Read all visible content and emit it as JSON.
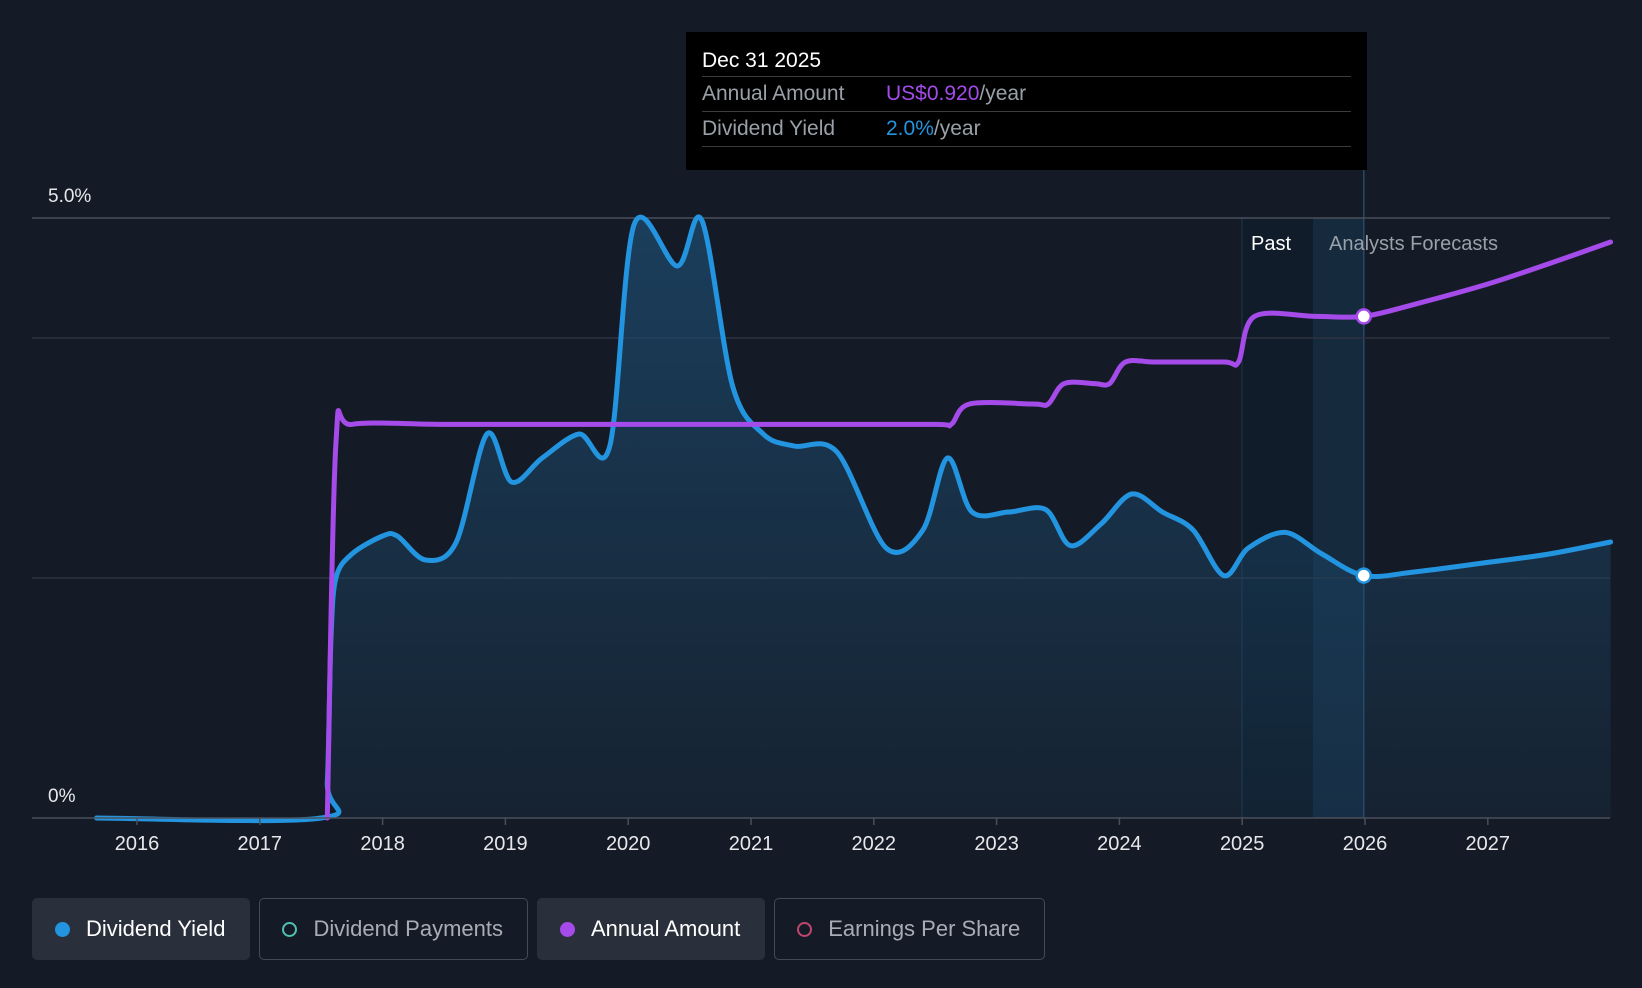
{
  "chart_data": {
    "type": "line",
    "x_ticks": [
      "2016",
      "2017",
      "2018",
      "2019",
      "2020",
      "2021",
      "2022",
      "2023",
      "2024",
      "2025",
      "2026",
      "2027"
    ],
    "x_range": [
      2015.5,
      2028.0
    ],
    "y_range": [
      0,
      5.0
    ],
    "y_tick_labels": {
      "top": "5.0%",
      "bottom": "0%"
    },
    "grid_values": [
      0,
      2.0,
      4.0,
      5.0
    ],
    "past_label": "Past",
    "forecast_label": "Analysts Forecasts",
    "forecast_start": 2025.99,
    "series": [
      {
        "name": "Dividend Yield",
        "color": "#2394df",
        "area": true,
        "points": [
          [
            2015.67,
            0.0
          ],
          [
            2017.5,
            0.0
          ],
          [
            2017.55,
            0.3
          ],
          [
            2017.58,
            1.5
          ],
          [
            2017.62,
            2.0
          ],
          [
            2017.75,
            2.2
          ],
          [
            2018.0,
            2.35
          ],
          [
            2018.12,
            2.35
          ],
          [
            2018.35,
            2.15
          ],
          [
            2018.6,
            2.3
          ],
          [
            2018.85,
            3.2
          ],
          [
            2019.05,
            2.8
          ],
          [
            2019.3,
            3.0
          ],
          [
            2019.6,
            3.2
          ],
          [
            2019.85,
            3.1
          ],
          [
            2020.05,
            4.95
          ],
          [
            2020.4,
            4.6
          ],
          [
            2020.6,
            4.98
          ],
          [
            2020.85,
            3.6
          ],
          [
            2021.1,
            3.2
          ],
          [
            2021.35,
            3.1
          ],
          [
            2021.7,
            3.05
          ],
          [
            2022.1,
            2.25
          ],
          [
            2022.4,
            2.4
          ],
          [
            2022.6,
            3.0
          ],
          [
            2022.8,
            2.55
          ],
          [
            2023.1,
            2.55
          ],
          [
            2023.4,
            2.57
          ],
          [
            2023.6,
            2.27
          ],
          [
            2023.85,
            2.45
          ],
          [
            2024.1,
            2.7
          ],
          [
            2024.35,
            2.55
          ],
          [
            2024.6,
            2.4
          ],
          [
            2024.85,
            2.02
          ],
          [
            2025.05,
            2.25
          ],
          [
            2025.35,
            2.38
          ],
          [
            2025.65,
            2.2
          ],
          [
            2025.99,
            2.02
          ],
          [
            2026.4,
            2.05
          ],
          [
            2027.0,
            2.13
          ],
          [
            2027.5,
            2.2
          ],
          [
            2028.0,
            2.3
          ]
        ]
      },
      {
        "name": "Annual Amount",
        "color": "#a44bea",
        "area": false,
        "points": [
          [
            2017.55,
            0.0
          ],
          [
            2017.62,
            3.12
          ],
          [
            2017.75,
            3.28
          ],
          [
            2018.5,
            3.28
          ],
          [
            2019.5,
            3.28
          ],
          [
            2020.5,
            3.28
          ],
          [
            2021.5,
            3.28
          ],
          [
            2022.5,
            3.28
          ],
          [
            2022.63,
            3.28
          ],
          [
            2022.78,
            3.45
          ],
          [
            2023.3,
            3.45
          ],
          [
            2023.42,
            3.45
          ],
          [
            2023.55,
            3.62
          ],
          [
            2023.8,
            3.62
          ],
          [
            2023.92,
            3.62
          ],
          [
            2024.05,
            3.8
          ],
          [
            2024.3,
            3.8
          ],
          [
            2024.85,
            3.8
          ],
          [
            2024.97,
            3.8
          ],
          [
            2025.1,
            4.18
          ],
          [
            2025.6,
            4.18
          ],
          [
            2025.99,
            4.18
          ],
          [
            2026.4,
            4.28
          ],
          [
            2027.0,
            4.45
          ],
          [
            2027.5,
            4.62
          ],
          [
            2028.0,
            4.8
          ]
        ]
      }
    ],
    "markers": [
      {
        "series": "Dividend Yield",
        "x": 2025.99,
        "y": 2.02
      },
      {
        "series": "Annual Amount",
        "x": 2025.99,
        "y": 4.18
      }
    ]
  },
  "tooltip": {
    "date": "Dec 31 2025",
    "rows": [
      {
        "label": "Annual Amount",
        "value": "US$0.920",
        "unit": "/year",
        "color": "#a44bea"
      },
      {
        "label": "Dividend Yield",
        "value": "2.0%",
        "unit": "/year",
        "color": "#2394df"
      }
    ]
  },
  "legend": [
    {
      "label": "Dividend Yield",
      "color": "#2394df",
      "active": true,
      "marker": "filled"
    },
    {
      "label": "Dividend Payments",
      "color": "#4fc0b2",
      "active": false,
      "marker": "hollow"
    },
    {
      "label": "Annual Amount",
      "color": "#a44bea",
      "active": true,
      "marker": "filled"
    },
    {
      "label": "Earnings Per Share",
      "color": "#c0466e",
      "active": false,
      "marker": "hollow"
    }
  ]
}
